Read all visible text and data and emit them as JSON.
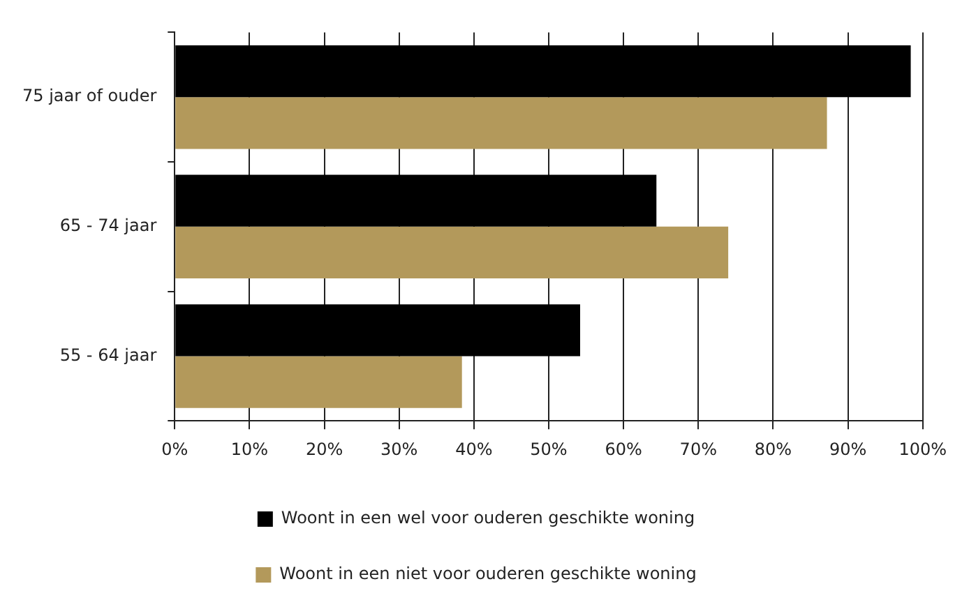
{
  "chart_data": {
    "type": "bar",
    "orientation": "horizontal",
    "categories": [
      "75 jaar of ouder",
      "65 - 74 jaar",
      "55 - 64 jaar"
    ],
    "series": [
      {
        "name": "Woont in een wel voor ouderen geschikte woning",
        "color": "#000000",
        "values": [
          98.4,
          64.4,
          54.2
        ]
      },
      {
        "name": "Woont in een niet voor ouderen geschikte woning",
        "color": "#b3995b",
        "values": [
          87.2,
          74.0,
          38.4
        ]
      }
    ],
    "xlim": [
      0,
      100
    ],
    "xticks": [
      {
        "value": 0,
        "label": "0%"
      },
      {
        "value": 10,
        "label": "10%"
      },
      {
        "value": 20,
        "label": "20%"
      },
      {
        "value": 30,
        "label": "30%"
      },
      {
        "value": 40,
        "label": "40%"
      },
      {
        "value": 50,
        "label": "50%"
      },
      {
        "value": 60,
        "label": "60%"
      },
      {
        "value": 70,
        "label": "70%"
      },
      {
        "value": 80,
        "label": "80%"
      },
      {
        "value": 90,
        "label": "90%"
      },
      {
        "value": 100,
        "label": "100%"
      }
    ],
    "grid": "x",
    "legend": "bottom"
  }
}
